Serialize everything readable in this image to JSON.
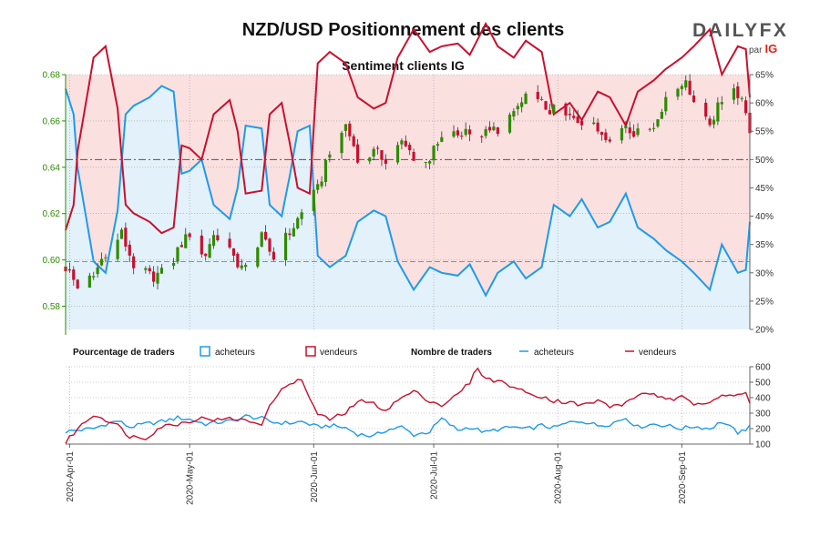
{
  "title": "NZD/USD Positionnement des clients",
  "subtitle": "Sentiment clients IG",
  "logo": {
    "brand": "DAILYFX",
    "sub": "par",
    "sub_brand": "IG"
  },
  "colors": {
    "price_axis": "#2e8b00",
    "buyers": "#1e9be8",
    "buyers_fill": "#e3f1fa",
    "sellers": "#c8102e",
    "sellers_fill": "#fbe0e0",
    "candle_up": "#2e8b00",
    "candle_down": "#c8102e",
    "grid": "#9a9a9a",
    "ref_line": "#555555"
  },
  "legend": {
    "pct_title": "Pourcentage de traders",
    "count_title": "Nombre de traders",
    "buyers": "acheteurs",
    "sellers": "vendeurs"
  },
  "chart_data": [
    {
      "type": "candlestick",
      "name": "NZD/USD",
      "ylim": [
        0.57,
        0.68
      ],
      "yticks": [
        0.58,
        0.6,
        0.62,
        0.64,
        0.66,
        0.68
      ],
      "y2lim": [
        20,
        65
      ],
      "y2ticks": [
        "20%",
        "25%",
        "30%",
        "35%",
        "40%",
        "45%",
        "50%",
        "55%",
        "60%",
        "65%"
      ],
      "x_start": "2020-03-31",
      "x_end": "2020-09-18",
      "xtick_labels": [
        "2020-Apr-01",
        "2020-May-01",
        "2020-Jun-01",
        "2020-Jul-01",
        "2020-Aug-01",
        "2020-Sep-01"
      ],
      "price_anchors": [
        [
          "2020-03-31",
          0.597
        ],
        [
          "2020-04-03",
          0.588
        ],
        [
          "2020-04-07",
          0.593
        ],
        [
          "2020-04-10",
          0.604
        ],
        [
          "2020-04-14",
          0.611
        ],
        [
          "2020-04-17",
          0.598
        ],
        [
          "2020-04-21",
          0.593
        ],
        [
          "2020-04-24",
          0.594
        ],
        [
          "2020-04-28",
          0.603
        ],
        [
          "2020-04-30",
          0.612
        ],
        [
          "2020-05-04",
          0.602
        ],
        [
          "2020-05-08",
          0.61
        ],
        [
          "2020-05-12",
          0.601
        ],
        [
          "2020-05-15",
          0.596
        ],
        [
          "2020-05-19",
          0.609
        ],
        [
          "2020-05-22",
          0.601
        ],
        [
          "2020-05-26",
          0.612
        ],
        [
          "2020-05-29",
          0.62
        ],
        [
          "2020-06-02",
          0.63
        ],
        [
          "2020-06-05",
          0.648
        ],
        [
          "2020-06-09",
          0.658
        ],
        [
          "2020-06-12",
          0.645
        ],
        [
          "2020-06-16",
          0.646
        ],
        [
          "2020-06-19",
          0.644
        ],
        [
          "2020-06-23",
          0.65
        ],
        [
          "2020-06-26",
          0.645
        ],
        [
          "2020-06-30",
          0.644
        ],
        [
          "2020-07-03",
          0.652
        ],
        [
          "2020-07-07",
          0.654
        ],
        [
          "2020-07-10",
          0.657
        ],
        [
          "2020-07-14",
          0.654
        ],
        [
          "2020-07-17",
          0.657
        ],
        [
          "2020-07-21",
          0.664
        ],
        [
          "2020-07-24",
          0.669
        ],
        [
          "2020-07-28",
          0.667
        ],
        [
          "2020-07-31",
          0.664
        ],
        [
          "2020-08-04",
          0.661
        ],
        [
          "2020-08-07",
          0.66
        ],
        [
          "2020-08-11",
          0.656
        ],
        [
          "2020-08-14",
          0.654
        ],
        [
          "2020-08-18",
          0.659
        ],
        [
          "2020-08-21",
          0.654
        ],
        [
          "2020-08-25",
          0.657
        ],
        [
          "2020-08-28",
          0.671
        ],
        [
          "2020-09-01",
          0.677
        ],
        [
          "2020-09-04",
          0.67
        ],
        [
          "2020-09-08",
          0.659
        ],
        [
          "2020-09-11",
          0.67
        ],
        [
          "2020-09-15",
          0.672
        ],
        [
          "2020-09-17",
          0.662
        ],
        [
          "2020-09-18",
          0.657
        ]
      ],
      "sentiment_ref_lines": [
        50,
        32
      ],
      "buyers_pct_anchors": [
        [
          "2020-03-31",
          62.5
        ],
        [
          "2020-04-02",
          58.0
        ],
        [
          "2020-04-03",
          48.5
        ],
        [
          "2020-04-07",
          32.0
        ],
        [
          "2020-04-10",
          30.0
        ],
        [
          "2020-04-13",
          41.0
        ],
        [
          "2020-04-15",
          58.0
        ],
        [
          "2020-04-17",
          59.5
        ],
        [
          "2020-04-21",
          61.0
        ],
        [
          "2020-04-24",
          63.0
        ],
        [
          "2020-04-27",
          62.0
        ],
        [
          "2020-04-29",
          47.5
        ],
        [
          "2020-05-01",
          48.0
        ],
        [
          "2020-05-04",
          50.0
        ],
        [
          "2020-05-07",
          42.0
        ],
        [
          "2020-05-11",
          39.5
        ],
        [
          "2020-05-13",
          45.0
        ],
        [
          "2020-05-15",
          56.0
        ],
        [
          "2020-05-19",
          55.5
        ],
        [
          "2020-05-21",
          42.0
        ],
        [
          "2020-05-24",
          40.0
        ],
        [
          "2020-05-26",
          47.0
        ],
        [
          "2020-05-28",
          55.0
        ],
        [
          "2020-05-31",
          56.0
        ],
        [
          "2020-06-02",
          33.0
        ],
        [
          "2020-06-05",
          31.0
        ],
        [
          "2020-06-09",
          33.0
        ],
        [
          "2020-06-12",
          39.0
        ],
        [
          "2020-06-16",
          41.0
        ],
        [
          "2020-06-19",
          40.0
        ],
        [
          "2020-06-22",
          32.0
        ],
        [
          "2020-06-26",
          27.0
        ],
        [
          "2020-06-30",
          31.0
        ],
        [
          "2020-07-03",
          30.0
        ],
        [
          "2020-07-07",
          29.5
        ],
        [
          "2020-07-10",
          31.5
        ],
        [
          "2020-07-14",
          26.0
        ],
        [
          "2020-07-17",
          30.0
        ],
        [
          "2020-07-21",
          32.0
        ],
        [
          "2020-07-24",
          29.0
        ],
        [
          "2020-07-28",
          31.0
        ],
        [
          "2020-07-31",
          42.0
        ],
        [
          "2020-08-04",
          40.0
        ],
        [
          "2020-08-07",
          43.0
        ],
        [
          "2020-08-11",
          38.0
        ],
        [
          "2020-08-14",
          39.0
        ],
        [
          "2020-08-18",
          44.0
        ],
        [
          "2020-08-21",
          38.0
        ],
        [
          "2020-08-25",
          36.0
        ],
        [
          "2020-08-28",
          34.0
        ],
        [
          "2020-09-01",
          32.0
        ],
        [
          "2020-09-04",
          30.0
        ],
        [
          "2020-09-08",
          27.0
        ],
        [
          "2020-09-11",
          35.0
        ],
        [
          "2020-09-15",
          30.0
        ],
        [
          "2020-09-17",
          30.5
        ],
        [
          "2020-09-18",
          39.0
        ]
      ]
    },
    {
      "type": "line",
      "name": "Nombre de traders",
      "ylim": [
        100,
        600
      ],
      "yticks": [
        100,
        200,
        300,
        400,
        500,
        600
      ],
      "series": [
        {
          "name": "acheteurs",
          "anchors": [
            [
              "2020-03-31",
              180
            ],
            [
              "2020-04-03",
              190
            ],
            [
              "2020-04-07",
              200
            ],
            [
              "2020-04-10",
              230
            ],
            [
              "2020-04-13",
              250
            ],
            [
              "2020-04-16",
              210
            ],
            [
              "2020-04-20",
              230
            ],
            [
              "2020-04-24",
              245
            ],
            [
              "2020-04-28",
              270
            ],
            [
              "2020-05-01",
              260
            ],
            [
              "2020-05-05",
              230
            ],
            [
              "2020-05-08",
              240
            ],
            [
              "2020-05-12",
              250
            ],
            [
              "2020-05-15",
              280
            ],
            [
              "2020-05-19",
              265
            ],
            [
              "2020-05-22",
              240
            ],
            [
              "2020-05-26",
              235
            ],
            [
              "2020-05-29",
              245
            ],
            [
              "2020-06-02",
              210
            ],
            [
              "2020-06-05",
              220
            ],
            [
              "2020-06-09",
              205
            ],
            [
              "2020-06-12",
              165
            ],
            [
              "2020-06-16",
              150
            ],
            [
              "2020-06-19",
              190
            ],
            [
              "2020-06-23",
              210
            ],
            [
              "2020-06-26",
              160
            ],
            [
              "2020-06-30",
              180
            ],
            [
              "2020-07-03",
              265
            ],
            [
              "2020-07-07",
              190
            ],
            [
              "2020-07-10",
              210
            ],
            [
              "2020-07-14",
              175
            ],
            [
              "2020-07-17",
              195
            ],
            [
              "2020-07-21",
              210
            ],
            [
              "2020-07-24",
              195
            ],
            [
              "2020-07-28",
              220
            ],
            [
              "2020-07-31",
              205
            ],
            [
              "2020-08-04",
              240
            ],
            [
              "2020-08-07",
              250
            ],
            [
              "2020-08-11",
              220
            ],
            [
              "2020-08-14",
              230
            ],
            [
              "2020-08-18",
              270
            ],
            [
              "2020-08-21",
              210
            ],
            [
              "2020-08-25",
              230
            ],
            [
              "2020-08-28",
              220
            ],
            [
              "2020-09-01",
              200
            ],
            [
              "2020-09-04",
              215
            ],
            [
              "2020-09-08",
              200
            ],
            [
              "2020-09-11",
              245
            ],
            [
              "2020-09-15",
              175
            ],
            [
              "2020-09-17",
              180
            ],
            [
              "2020-09-18",
              235
            ]
          ]
        },
        {
          "name": "vendeurs",
          "anchors": [
            [
              "2020-03-31",
              110
            ],
            [
              "2020-04-03",
              200
            ],
            [
              "2020-04-07",
              290
            ],
            [
              "2020-04-10",
              260
            ],
            [
              "2020-04-13",
              220
            ],
            [
              "2020-04-16",
              150
            ],
            [
              "2020-04-20",
              140
            ],
            [
              "2020-04-24",
              215
            ],
            [
              "2020-04-28",
              230
            ],
            [
              "2020-05-01",
              250
            ],
            [
              "2020-05-05",
              270
            ],
            [
              "2020-05-08",
              255
            ],
            [
              "2020-05-12",
              265
            ],
            [
              "2020-05-15",
              250
            ],
            [
              "2020-05-19",
              235
            ],
            [
              "2020-05-22",
              390
            ],
            [
              "2020-05-26",
              500
            ],
            [
              "2020-05-29",
              510
            ],
            [
              "2020-06-02",
              290
            ],
            [
              "2020-06-05",
              260
            ],
            [
              "2020-06-09",
              300
            ],
            [
              "2020-06-12",
              380
            ],
            [
              "2020-06-16",
              360
            ],
            [
              "2020-06-19",
              320
            ],
            [
              "2020-06-23",
              400
            ],
            [
              "2020-06-26",
              440
            ],
            [
              "2020-06-30",
              380
            ],
            [
              "2020-07-03",
              350
            ],
            [
              "2020-07-07",
              420
            ],
            [
              "2020-07-10",
              500
            ],
            [
              "2020-07-12",
              595
            ],
            [
              "2020-07-14",
              520
            ],
            [
              "2020-07-17",
              510
            ],
            [
              "2020-07-21",
              470
            ],
            [
              "2020-07-24",
              430
            ],
            [
              "2020-07-28",
              410
            ],
            [
              "2020-07-31",
              380
            ],
            [
              "2020-08-04",
              370
            ],
            [
              "2020-08-07",
              350
            ],
            [
              "2020-08-11",
              380
            ],
            [
              "2020-08-14",
              345
            ],
            [
              "2020-08-18",
              360
            ],
            [
              "2020-08-21",
              420
            ],
            [
              "2020-08-25",
              430
            ],
            [
              "2020-08-28",
              380
            ],
            [
              "2020-09-01",
              400
            ],
            [
              "2020-09-04",
              360
            ],
            [
              "2020-09-08",
              380
            ],
            [
              "2020-09-11",
              420
            ],
            [
              "2020-09-15",
              410
            ],
            [
              "2020-09-17",
              430
            ],
            [
              "2020-09-18",
              360
            ]
          ]
        }
      ]
    }
  ]
}
